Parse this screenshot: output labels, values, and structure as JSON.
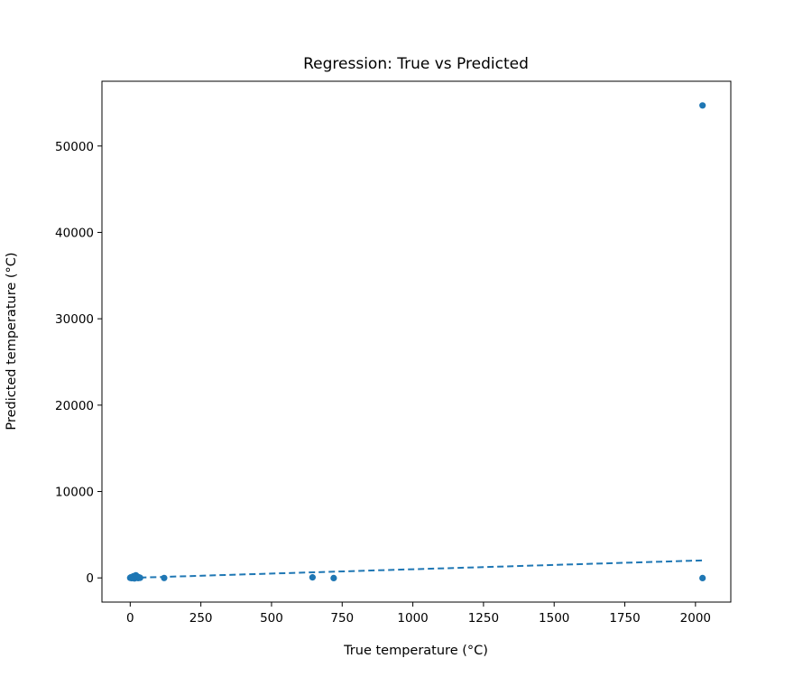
{
  "chart_data": {
    "type": "scatter",
    "title": "Regression: True vs Predicted",
    "xlabel": "True temperature (°C)",
    "ylabel": "Predicted temperature (°C)",
    "xlim": [
      -100,
      2125
    ],
    "ylim": [
      -2800,
      57500
    ],
    "xticks": [
      0,
      250,
      500,
      750,
      1000,
      1250,
      1500,
      1750,
      2000
    ],
    "yticks": [
      0,
      10000,
      20000,
      30000,
      40000,
      50000
    ],
    "grid": false,
    "legend": "none",
    "color": "#1f77b4",
    "series": [
      {
        "values_x": [
          0,
          2,
          5,
          8,
          10,
          12,
          15,
          18,
          20,
          22,
          25,
          28,
          30,
          35,
          120,
          645,
          720,
          2025,
          2025
        ],
        "values_y": [
          0,
          60,
          -30,
          120,
          40,
          200,
          -60,
          90,
          300,
          20,
          150,
          -20,
          80,
          10,
          -10,
          60,
          -20,
          -20,
          54700
        ]
      }
    ],
    "reference_line": {
      "style": "dashed",
      "x": [
        0,
        2025
      ],
      "y": [
        0,
        2025
      ]
    }
  }
}
